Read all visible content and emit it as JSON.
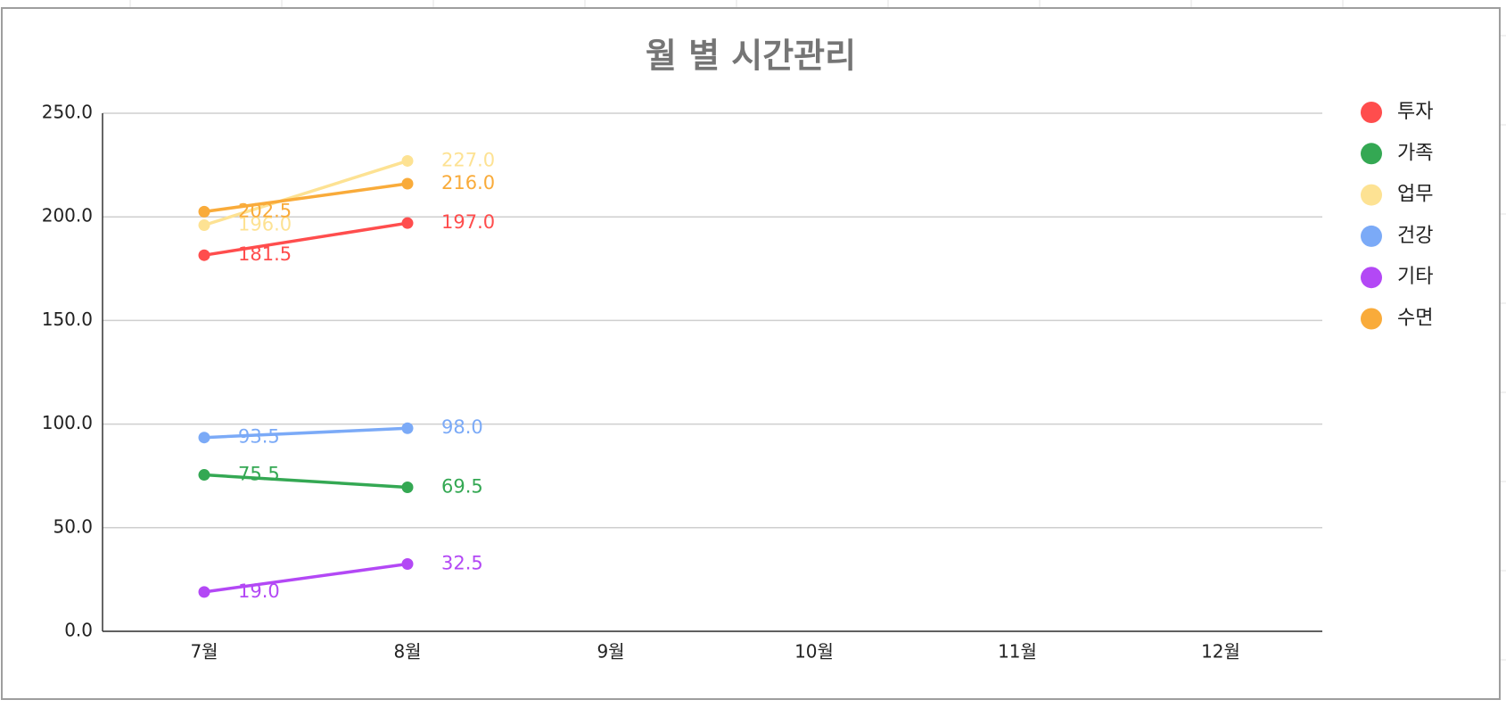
{
  "chart_data": {
    "type": "line",
    "title": "월 별 시간관리",
    "categories": [
      "7월",
      "8월",
      "9월",
      "10월",
      "11월",
      "12월"
    ],
    "series": [
      {
        "name": "투자",
        "color": "#ff4d4d",
        "values": [
          181.5,
          197,
          null,
          null,
          null,
          null
        ],
        "value_labels": [
          "181.5",
          "197.0",
          null,
          null,
          null,
          null
        ]
      },
      {
        "name": "가족",
        "color": "#34a853",
        "values": [
          75.5,
          69.5,
          null,
          null,
          null,
          null
        ],
        "value_labels": [
          "75.5",
          "69.5",
          null,
          null,
          null,
          null
        ]
      },
      {
        "name": "업무",
        "color": "#fde293",
        "values": [
          196,
          227,
          null,
          null,
          null,
          null
        ],
        "value_labels": [
          "196.0",
          "227.0",
          null,
          null,
          null,
          null
        ]
      },
      {
        "name": "건강",
        "color": "#7baaf7",
        "values": [
          93.5,
          98,
          null,
          null,
          null,
          null
        ],
        "value_labels": [
          "93.5",
          "98.0",
          null,
          null,
          null,
          null
        ]
      },
      {
        "name": "기타",
        "color": "#b348f5",
        "values": [
          19,
          32.5,
          null,
          null,
          null,
          null
        ],
        "value_labels": [
          "19.0",
          "32.5",
          null,
          null,
          null,
          null
        ]
      },
      {
        "name": "수면",
        "color": "#f9ab3a",
        "values": [
          202.5,
          216,
          null,
          null,
          null,
          null
        ],
        "value_labels": [
          "202.5",
          "216.0",
          null,
          null,
          null,
          null
        ]
      }
    ],
    "ylim": [
      0,
      250
    ],
    "yticks": [
      {
        "value": 0,
        "label": "0.0"
      },
      {
        "value": 50,
        "label": "50.0"
      },
      {
        "value": 100,
        "label": "100.0"
      },
      {
        "value": 150,
        "label": "150.0"
      },
      {
        "value": 200,
        "label": "200.0"
      },
      {
        "value": 250,
        "label": "250.0"
      }
    ],
    "grid": true,
    "legend": "right"
  }
}
